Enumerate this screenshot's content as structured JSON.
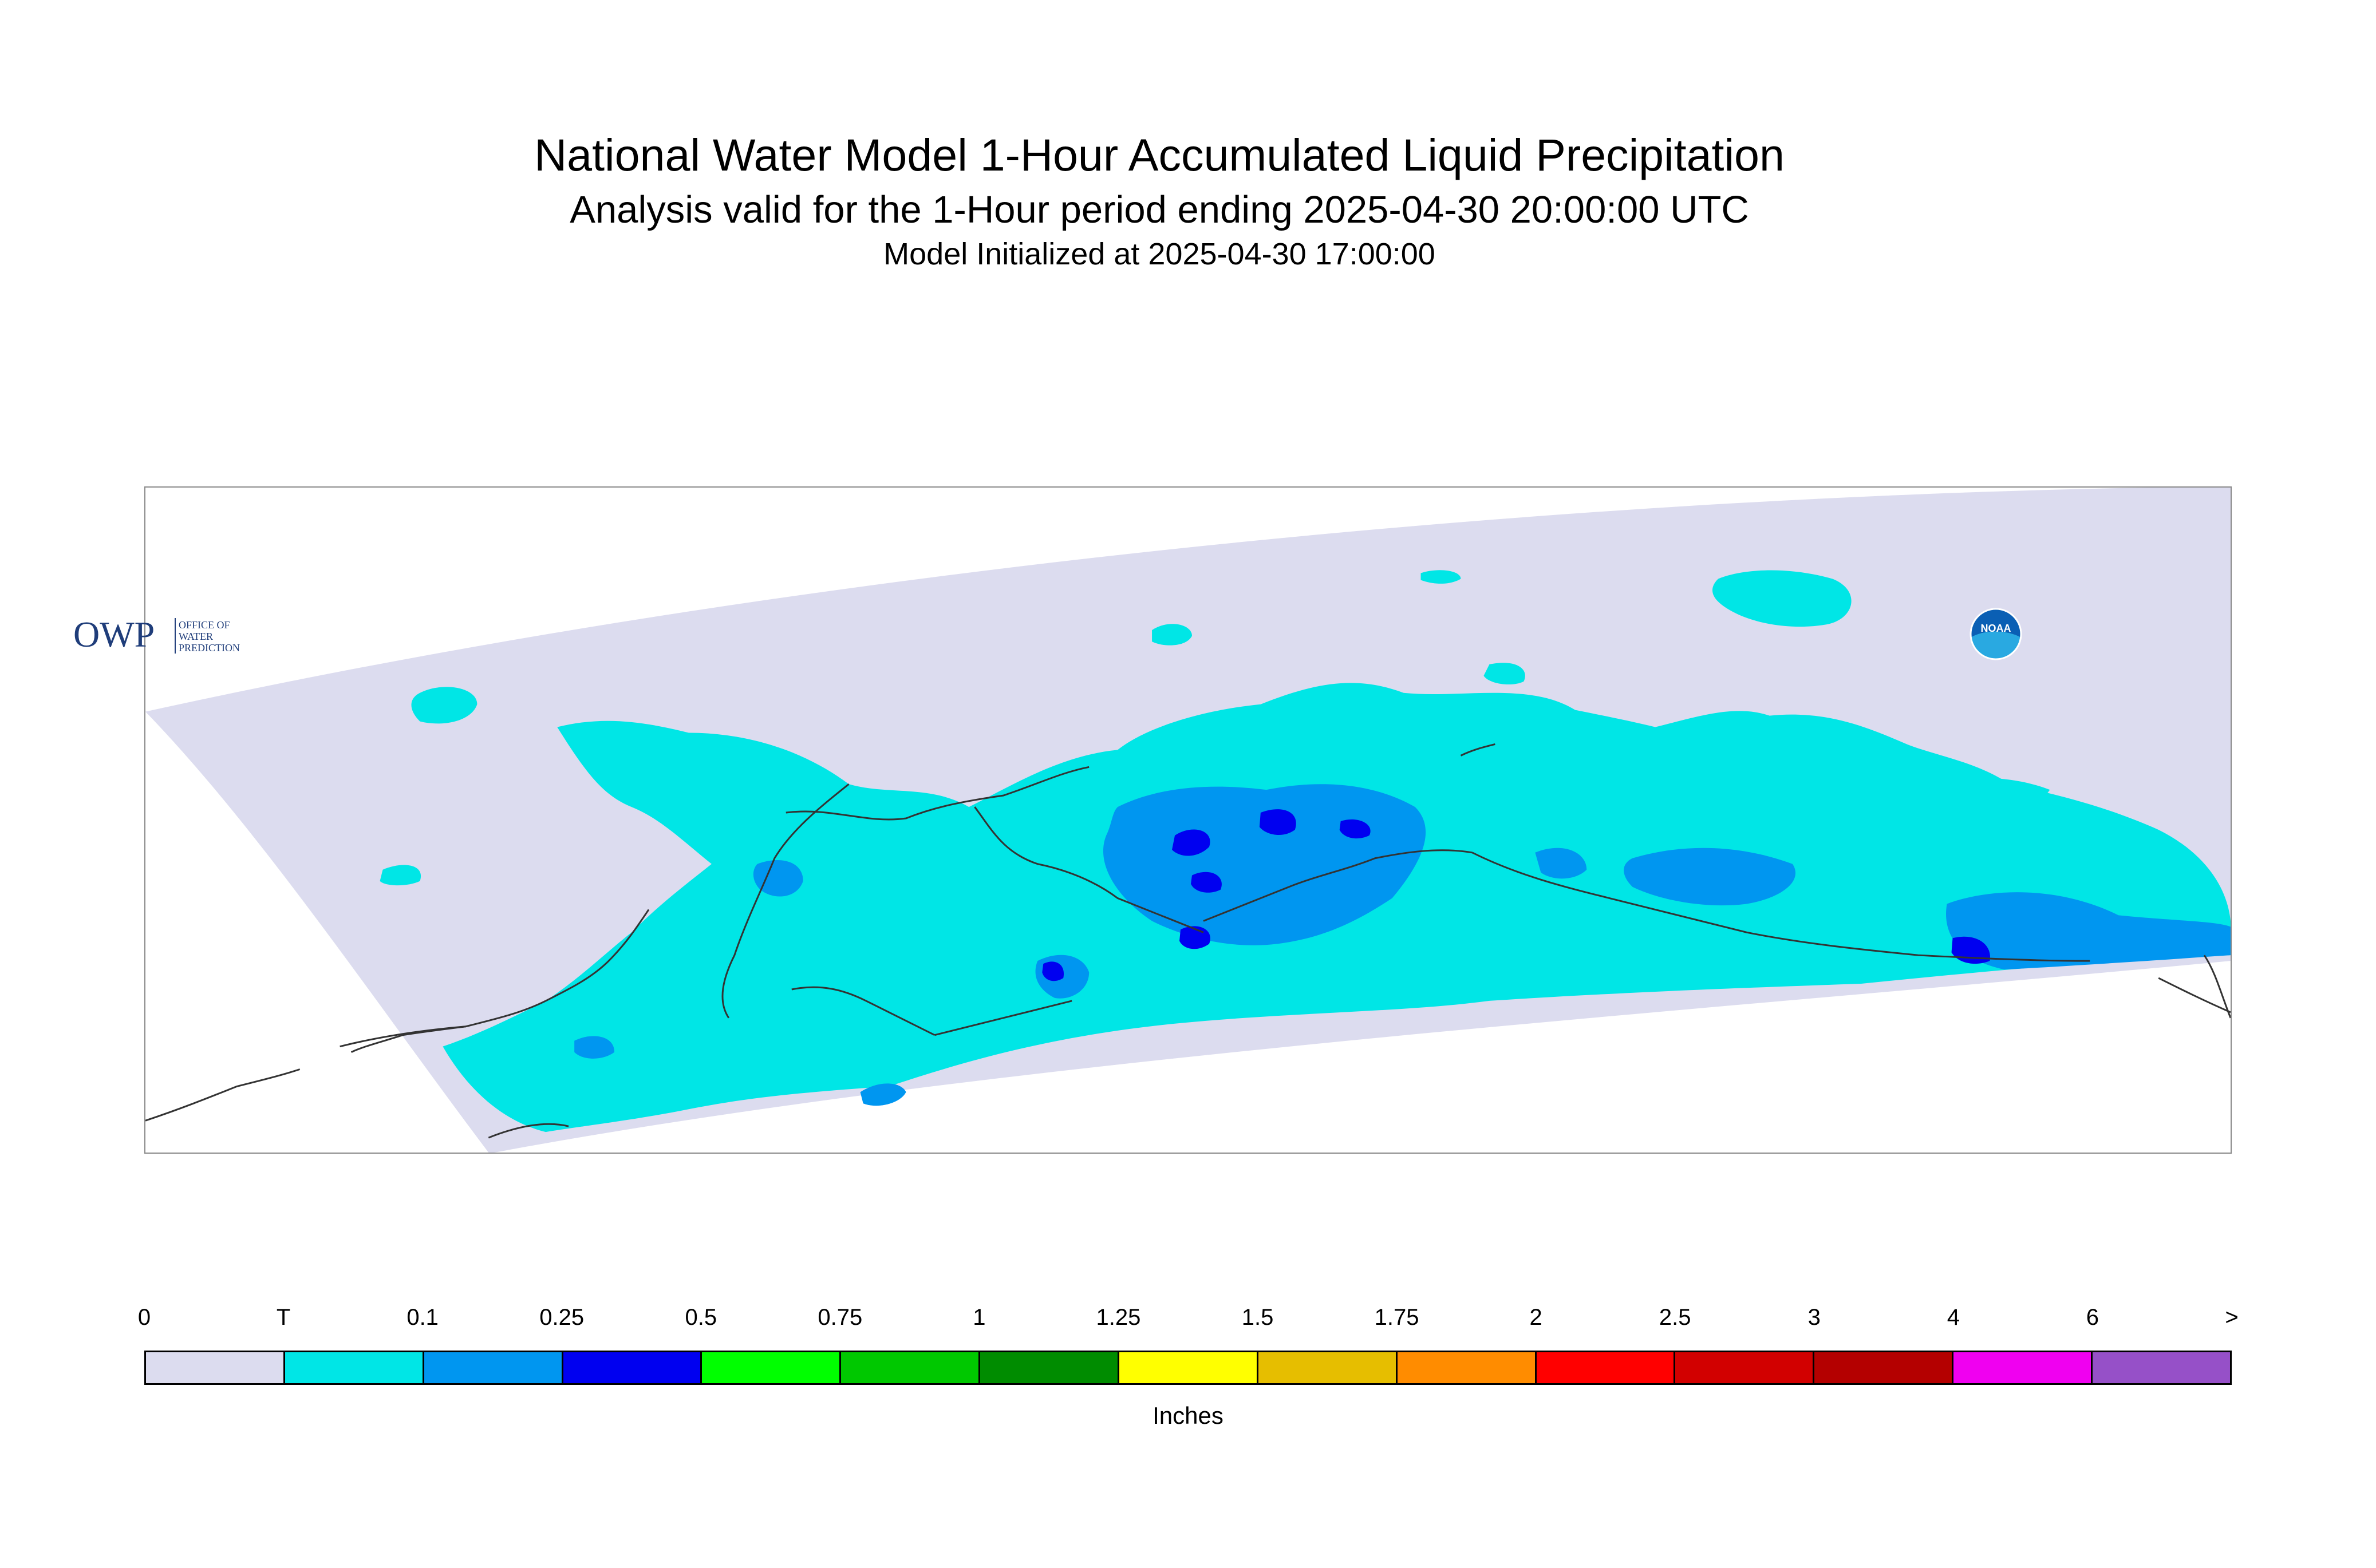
{
  "header": {
    "title": "National Water Model 1-Hour Accumulated Liquid Precipitation",
    "subtitle": "Analysis valid for the 1-Hour period ending 2025-04-30 20:00:00 UTC",
    "init_line": "Model Initialized at 2025-04-30 17:00:00"
  },
  "map": {
    "domain_fill": "#dcdcef",
    "coastline_color": "#333333"
  },
  "logos": {
    "owp": {
      "mark": "OWP",
      "line1": "OFFICE OF",
      "line2": "WATER",
      "line3": "PREDICTION",
      "color": "#1f3d7a"
    },
    "noaa": {
      "mark": "NOAA",
      "color": "#0a5fb4"
    }
  },
  "legend": {
    "units": "Inches",
    "ticks": [
      "0",
      "T",
      "0.1",
      "0.25",
      "0.5",
      "0.75",
      "1",
      "1.25",
      "1.5",
      "1.75",
      "2",
      "2.5",
      "3",
      "4",
      "6",
      ">"
    ],
    "colors": [
      "#dcdcef",
      "#00e6e6",
      "#0096f0",
      "#0000f0",
      "#00ff00",
      "#00c800",
      "#008c00",
      "#ffff00",
      "#e6be00",
      "#ff8c00",
      "#ff0000",
      "#d20000",
      "#b40000",
      "#f000f0",
      "#9650c8"
    ]
  }
}
